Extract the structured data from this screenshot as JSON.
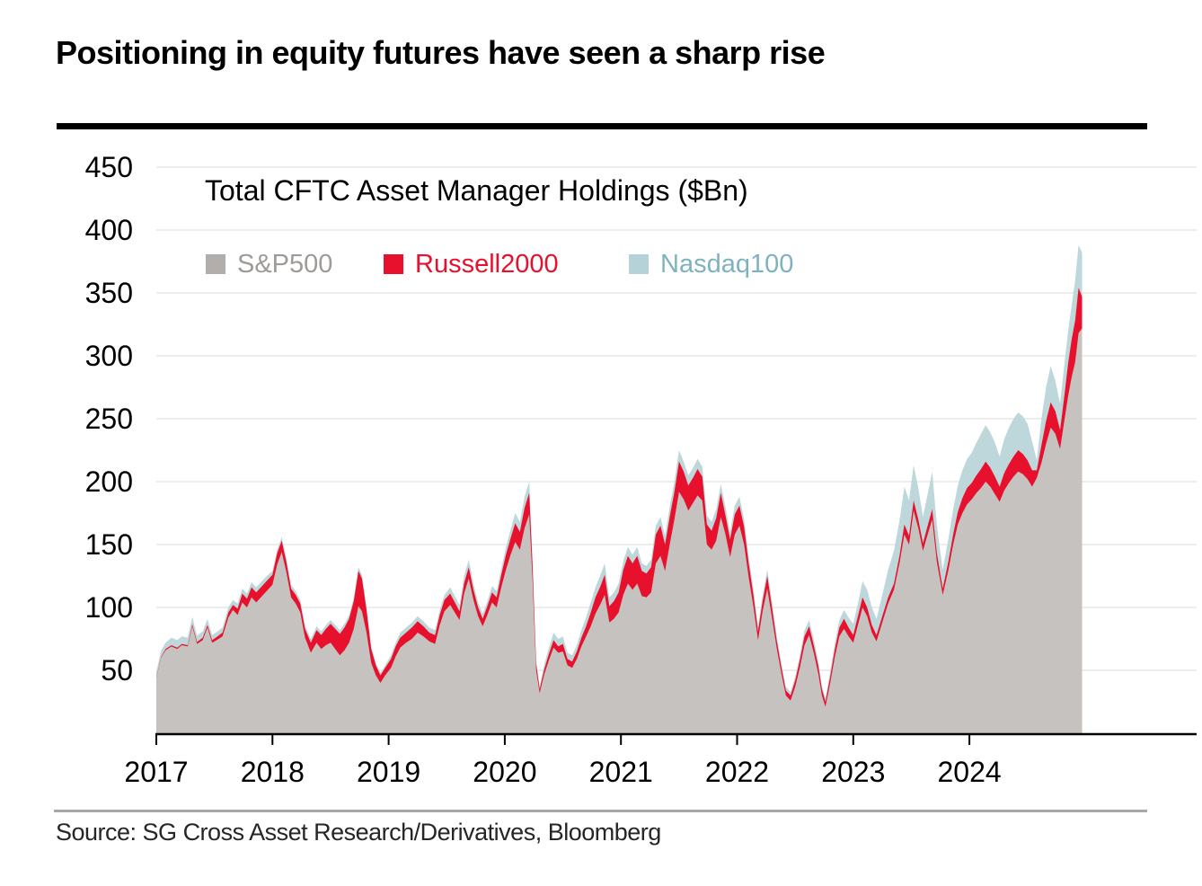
{
  "title": "Positioning in equity futures have seen a sharp rise",
  "source": "Source: SG Cross Asset Research/Derivatives, Bloomberg",
  "legend": {
    "sp500": {
      "label": "S&P500",
      "swatch_color": "#b2aeab",
      "text_color": "#9e9a98"
    },
    "russell2000": {
      "label": "Russell2000",
      "swatch_color": "#e8112d",
      "text_color": "#e8112d"
    },
    "nasdaq100": {
      "label": "Nasdaq100",
      "swatch_color": "#b4d2d7",
      "text_color": "#7fb2c0"
    }
  },
  "chart_data": {
    "type": "area",
    "stacked": true,
    "title": "Total CFTC Asset Manager Holdings ($Bn)",
    "xlabel": "",
    "ylabel": "",
    "units": "$Bn",
    "grid": true,
    "legend_position": "top-left-inside",
    "xlim": [
      2017.0,
      2025.02
    ],
    "ylim": [
      0,
      460
    ],
    "xticks": [
      2017,
      2018,
      2019,
      2020,
      2021,
      2022,
      2023,
      2024
    ],
    "yticks": [
      50,
      100,
      150,
      200,
      250,
      300,
      350,
      400,
      450
    ],
    "style": {
      "grid_color": "#e7e7e5",
      "axis_color": "#000000",
      "tick_label_color": "#000000"
    },
    "series": [
      {
        "name": "S&P500",
        "color": "#c6c2bf"
      },
      {
        "name": "Russell2000",
        "color": "#e8112d"
      },
      {
        "name": "Nasdaq100",
        "color": "#bdd7db"
      }
    ],
    "columns": [
      "year",
      "sp500",
      "russell2000",
      "nasdaq100"
    ],
    "points": [
      [
        2017.0,
        44,
        0.5,
        4
      ],
      [
        2017.04,
        60,
        0.5,
        5
      ],
      [
        2017.08,
        66,
        1,
        5
      ],
      [
        2017.13,
        69,
        1,
        6
      ],
      [
        2017.18,
        67,
        1,
        6
      ],
      [
        2017.22,
        70,
        1,
        6
      ],
      [
        2017.27,
        69,
        1,
        6
      ],
      [
        2017.31,
        85,
        1.5,
        6
      ],
      [
        2017.35,
        71,
        1.5,
        5
      ],
      [
        2017.4,
        74,
        2,
        5
      ],
      [
        2017.44,
        84,
        2,
        5
      ],
      [
        2017.48,
        72,
        2,
        4
      ],
      [
        2017.52,
        74,
        2.5,
        4
      ],
      [
        2017.57,
        77,
        3,
        4
      ],
      [
        2017.62,
        92,
        4,
        4
      ],
      [
        2017.66,
        98,
        4,
        4
      ],
      [
        2017.7,
        94,
        5,
        4
      ],
      [
        2017.74,
        104,
        7,
        4
      ],
      [
        2017.78,
        100,
        7,
        4
      ],
      [
        2017.82,
        108,
        8,
        4
      ],
      [
        2017.86,
        104,
        8,
        4
      ],
      [
        2017.9,
        108,
        8,
        4
      ],
      [
        2017.94,
        112,
        8,
        4
      ],
      [
        2018.0,
        118,
        8,
        3
      ],
      [
        2018.04,
        134,
        9,
        3
      ],
      [
        2018.08,
        144,
        9,
        3
      ],
      [
        2018.12,
        128,
        8,
        3
      ],
      [
        2018.16,
        108,
        7,
        3
      ],
      [
        2018.2,
        103,
        7,
        3
      ],
      [
        2018.24,
        96,
        7,
        3
      ],
      [
        2018.28,
        76,
        7,
        3
      ],
      [
        2018.33,
        64,
        8,
        3
      ],
      [
        2018.38,
        72,
        10,
        3
      ],
      [
        2018.42,
        67,
        11,
        3
      ],
      [
        2018.46,
        70,
        13,
        3
      ],
      [
        2018.5,
        72,
        15,
        3
      ],
      [
        2018.54,
        67,
        16,
        3
      ],
      [
        2018.58,
        62,
        17,
        3
      ],
      [
        2018.62,
        66,
        18,
        3
      ],
      [
        2018.66,
        72,
        19,
        3
      ],
      [
        2018.7,
        83,
        22,
        3
      ],
      [
        2018.74,
        101,
        28,
        3
      ],
      [
        2018.77,
        97,
        26,
        3
      ],
      [
        2018.81,
        80,
        18,
        2
      ],
      [
        2018.85,
        56,
        11,
        2
      ],
      [
        2018.89,
        46,
        8,
        2
      ],
      [
        2018.93,
        40,
        6,
        2
      ],
      [
        2018.97,
        46,
        6,
        2
      ],
      [
        2019.02,
        52,
        7,
        3
      ],
      [
        2019.06,
        61,
        8,
        3
      ],
      [
        2019.1,
        68,
        8,
        4
      ],
      [
        2019.15,
        72,
        8,
        4
      ],
      [
        2019.2,
        75,
        9,
        4
      ],
      [
        2019.25,
        80,
        9,
        4
      ],
      [
        2019.3,
        77,
        8,
        4
      ],
      [
        2019.35,
        73,
        7,
        4
      ],
      [
        2019.4,
        71,
        7,
        4
      ],
      [
        2019.44,
        86,
        8,
        4
      ],
      [
        2019.48,
        97,
        9,
        4
      ],
      [
        2019.53,
        102,
        9,
        5
      ],
      [
        2019.57,
        96,
        8,
        5
      ],
      [
        2019.61,
        90,
        7,
        5
      ],
      [
        2019.65,
        111,
        8,
        6
      ],
      [
        2019.69,
        123,
        9,
        6
      ],
      [
        2019.73,
        106,
        8,
        5
      ],
      [
        2019.77,
        93,
        7,
        4
      ],
      [
        2019.81,
        85,
        6,
        4
      ],
      [
        2019.85,
        94,
        7,
        4
      ],
      [
        2019.89,
        104,
        8,
        5
      ],
      [
        2019.93,
        100,
        8,
        5
      ],
      [
        2019.97,
        116,
        10,
        5
      ],
      [
        2020.01,
        130,
        12,
        6
      ],
      [
        2020.05,
        142,
        13,
        7
      ],
      [
        2020.09,
        152,
        15,
        8
      ],
      [
        2020.13,
        146,
        14,
        8
      ],
      [
        2020.17,
        163,
        16,
        9
      ],
      [
        2020.21,
        174,
        17,
        9
      ],
      [
        2020.24,
        120,
        11,
        7
      ],
      [
        2020.27,
        50,
        5,
        4
      ],
      [
        2020.3,
        32,
        3,
        3
      ],
      [
        2020.34,
        47,
        4,
        4
      ],
      [
        2020.38,
        58,
        5,
        5
      ],
      [
        2020.42,
        68,
        6,
        6
      ],
      [
        2020.46,
        64,
        5,
        6
      ],
      [
        2020.5,
        65,
        6,
        6
      ],
      [
        2020.54,
        54,
        5,
        5
      ],
      [
        2020.58,
        52,
        5,
        5
      ],
      [
        2020.62,
        59,
        6,
        5
      ],
      [
        2020.66,
        69,
        7,
        6
      ],
      [
        2020.7,
        77,
        8,
        7
      ],
      [
        2020.74,
        85,
        11,
        8
      ],
      [
        2020.78,
        95,
        13,
        8
      ],
      [
        2020.82,
        102,
        14,
        9
      ],
      [
        2020.86,
        110,
        16,
        9
      ],
      [
        2020.9,
        88,
        13,
        7
      ],
      [
        2020.94,
        91,
        14,
        7
      ],
      [
        2020.98,
        96,
        16,
        7
      ],
      [
        2021.02,
        110,
        20,
        7
      ],
      [
        2021.06,
        119,
        22,
        7
      ],
      [
        2021.1,
        114,
        21,
        7
      ],
      [
        2021.14,
        119,
        22,
        7
      ],
      [
        2021.18,
        109,
        20,
        6
      ],
      [
        2021.22,
        108,
        19,
        6
      ],
      [
        2021.26,
        112,
        20,
        6
      ],
      [
        2021.3,
        135,
        23,
        7
      ],
      [
        2021.34,
        141,
        24,
        7
      ],
      [
        2021.38,
        129,
        21,
        7
      ],
      [
        2021.42,
        150,
        22,
        8
      ],
      [
        2021.46,
        170,
        22,
        8
      ],
      [
        2021.5,
        192,
        24,
        9
      ],
      [
        2021.54,
        186,
        22,
        8
      ],
      [
        2021.58,
        177,
        20,
        8
      ],
      [
        2021.62,
        183,
        20,
        8
      ],
      [
        2021.66,
        189,
        21,
        8
      ],
      [
        2021.7,
        185,
        19,
        8
      ],
      [
        2021.74,
        150,
        16,
        7
      ],
      [
        2021.78,
        146,
        15,
        7
      ],
      [
        2021.82,
        153,
        18,
        7
      ],
      [
        2021.86,
        172,
        19,
        7
      ],
      [
        2021.9,
        158,
        15,
        7
      ],
      [
        2021.94,
        140,
        14,
        6
      ],
      [
        2021.98,
        158,
        16,
        7
      ],
      [
        2022.02,
        165,
        16,
        7
      ],
      [
        2022.06,
        150,
        14,
        6
      ],
      [
        2022.1,
        124,
        11,
        5
      ],
      [
        2022.14,
        101,
        9,
        5
      ],
      [
        2022.18,
        74,
        7,
        4
      ],
      [
        2022.22,
        97,
        8,
        5
      ],
      [
        2022.26,
        115,
        10,
        5
      ],
      [
        2022.3,
        92,
        8,
        5
      ],
      [
        2022.34,
        68,
        6,
        4
      ],
      [
        2022.38,
        48,
        5,
        4
      ],
      [
        2022.42,
        30,
        4,
        3
      ],
      [
        2022.46,
        26,
        4,
        3
      ],
      [
        2022.5,
        37,
        5,
        3
      ],
      [
        2022.54,
        52,
        6,
        4
      ],
      [
        2022.58,
        70,
        7,
        5
      ],
      [
        2022.62,
        78,
        7,
        5
      ],
      [
        2022.66,
        64,
        6,
        5
      ],
      [
        2022.7,
        47,
        6,
        4
      ],
      [
        2022.73,
        30,
        5,
        3
      ],
      [
        2022.76,
        21,
        4,
        3
      ],
      [
        2022.8,
        39,
        5,
        4
      ],
      [
        2022.84,
        60,
        6,
        5
      ],
      [
        2022.88,
        77,
        7,
        6
      ],
      [
        2022.92,
        83,
        8,
        7
      ],
      [
        2022.96,
        77,
        7,
        8
      ],
      [
        2023.0,
        72,
        6,
        9
      ],
      [
        2023.04,
        86,
        7,
        10
      ],
      [
        2023.08,
        100,
        8,
        13
      ],
      [
        2023.12,
        93,
        7,
        14
      ],
      [
        2023.16,
        80,
        6,
        14
      ],
      [
        2023.2,
        73,
        5,
        13
      ],
      [
        2023.25,
        88,
        5,
        17
      ],
      [
        2023.3,
        103,
        5,
        22
      ],
      [
        2023.35,
        114,
        5,
        26
      ],
      [
        2023.4,
        136,
        6,
        28
      ],
      [
        2023.44,
        158,
        8,
        30
      ],
      [
        2023.48,
        150,
        7,
        28
      ],
      [
        2023.52,
        177,
        8,
        28
      ],
      [
        2023.56,
        163,
        7,
        25
      ],
      [
        2023.6,
        145,
        6,
        21
      ],
      [
        2023.64,
        158,
        7,
        25
      ],
      [
        2023.68,
        170,
        8,
        30
      ],
      [
        2023.72,
        136,
        7,
        22
      ],
      [
        2023.77,
        110,
        5,
        15
      ],
      [
        2023.82,
        130,
        7,
        18
      ],
      [
        2023.86,
        150,
        8,
        20
      ],
      [
        2023.9,
        166,
        10,
        21
      ],
      [
        2023.94,
        175,
        12,
        22
      ],
      [
        2023.98,
        182,
        13,
        23
      ],
      [
        2024.02,
        186,
        13,
        24
      ],
      [
        2024.06,
        191,
        14,
        26
      ],
      [
        2024.1,
        195,
        15,
        28
      ],
      [
        2024.14,
        200,
        16,
        29
      ],
      [
        2024.18,
        196,
        15,
        28
      ],
      [
        2024.22,
        190,
        14,
        27
      ],
      [
        2024.26,
        184,
        12,
        24
      ],
      [
        2024.3,
        193,
        14,
        27
      ],
      [
        2024.34,
        199,
        15,
        29
      ],
      [
        2024.38,
        204,
        16,
        30
      ],
      [
        2024.42,
        208,
        17,
        30
      ],
      [
        2024.46,
        206,
        16,
        30
      ],
      [
        2024.5,
        202,
        15,
        29
      ],
      [
        2024.54,
        196,
        13,
        23
      ],
      [
        2024.58,
        203,
        6,
        8
      ],
      [
        2024.62,
        215,
        14,
        21
      ],
      [
        2024.66,
        230,
        18,
        27
      ],
      [
        2024.7,
        243,
        20,
        29
      ],
      [
        2024.74,
        238,
        18,
        24
      ],
      [
        2024.78,
        226,
        15,
        21
      ],
      [
        2024.82,
        250,
        20,
        25
      ],
      [
        2024.85,
        268,
        26,
        26
      ],
      [
        2024.88,
        283,
        30,
        27
      ],
      [
        2024.91,
        295,
        33,
        32
      ],
      [
        2024.94,
        318,
        36,
        34
      ],
      [
        2024.97,
        322,
        25,
        35
      ]
    ]
  }
}
